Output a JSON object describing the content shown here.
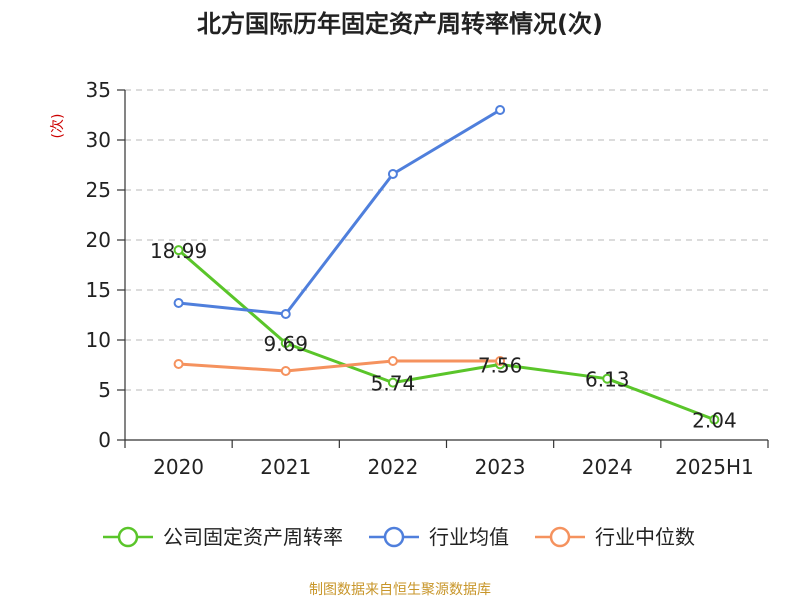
{
  "title": "北方国际历年固定资产周转率情况(次)",
  "source": "制图数据来自恒生聚源数据库",
  "colors": {
    "series_main": "#5ac52a",
    "series_avg": "#4f7fdc",
    "series_median": "#f5925e",
    "ylabel": "#cc0000",
    "source": "#c8962a",
    "grid": "#c8c8c8",
    "axis": "#333333"
  },
  "chart_data": {
    "type": "line",
    "title": "北方国际历年固定资产周转率情况(次)",
    "ylabel": "(次)",
    "xlabel": "",
    "categories": [
      "2020",
      "2021",
      "2022",
      "2023",
      "2024",
      "2025H1"
    ],
    "ylim": [
      0,
      35
    ],
    "yticks": [
      0,
      5,
      10,
      15,
      20,
      25,
      30,
      35
    ],
    "grid": true,
    "legend_position": "bottom",
    "series": [
      {
        "name": "公司固定资产周转率",
        "values": [
          18.99,
          9.69,
          5.74,
          7.56,
          6.13,
          2.04
        ],
        "labels": [
          "18.99",
          "9.69",
          "5.74",
          "7.56",
          "6.13",
          "2.04"
        ]
      },
      {
        "name": "行业均值",
        "values": [
          13.7,
          12.6,
          26.6,
          33.0,
          null,
          null
        ]
      },
      {
        "name": "行业中位数",
        "values": [
          7.6,
          6.9,
          7.9,
          7.9,
          null,
          null
        ]
      }
    ]
  }
}
